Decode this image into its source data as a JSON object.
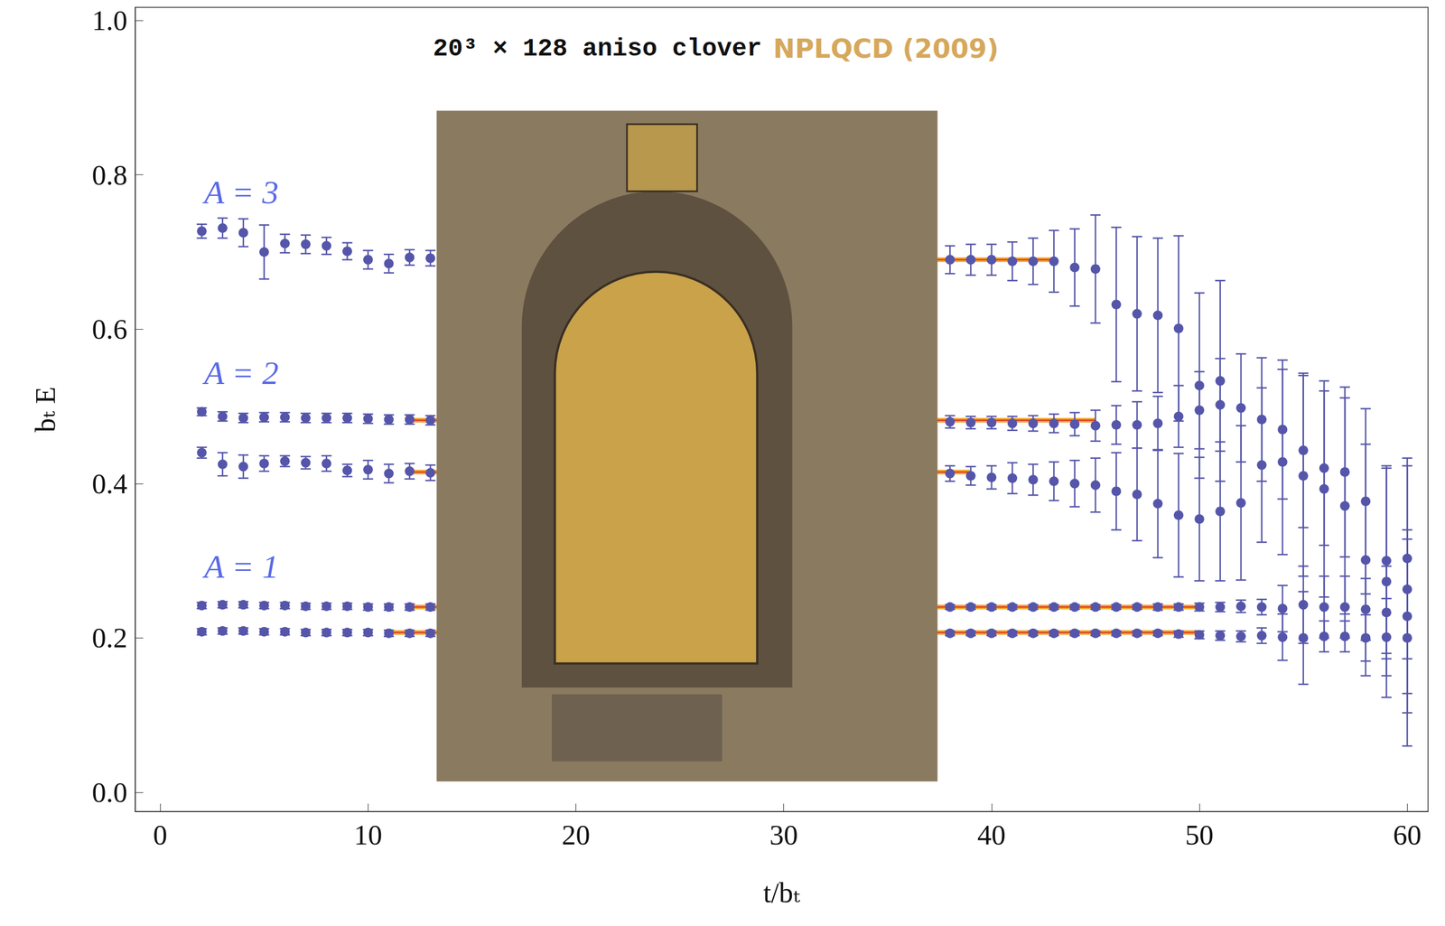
{
  "chart_data": {
    "type": "scatter",
    "title": "20³ × 128 aniso clover",
    "subtitle": "NPLQCD (2009)",
    "x_label": "t/bₜ",
    "y_label": "bₜ E",
    "xlim": [
      -1.2,
      61
    ],
    "ylim": [
      -0.025,
      1.017
    ],
    "xticks": [
      0,
      10,
      20,
      30,
      40,
      50,
      60
    ],
    "yticks": [
      {
        "value": 0,
        "label": "0.0"
      },
      0.2,
      0.4,
      0.6,
      0.8,
      {
        "value": 1,
        "label": "1.0"
      }
    ],
    "grid": false,
    "series": [
      {
        "group": "A = 3",
        "color": "#5555aa",
        "marker": "circle",
        "x": [
          2,
          3,
          4,
          5,
          6,
          7,
          8,
          9,
          10,
          11,
          12,
          13,
          38,
          39,
          40,
          41,
          42,
          43,
          44,
          45,
          46,
          47,
          48,
          49,
          50,
          51
        ],
        "values": [
          0.727,
          0.731,
          0.725,
          0.7,
          0.711,
          0.71,
          0.708,
          0.701,
          0.69,
          0.685,
          0.693,
          0.692,
          0.69,
          0.69,
          0.69,
          0.688,
          0.688,
          0.688,
          0.68,
          0.678,
          0.632,
          0.62,
          0.618,
          0.601,
          0.527,
          0.533
        ],
        "errors": [
          0.009,
          0.013,
          0.018,
          0.035,
          0.012,
          0.012,
          0.011,
          0.011,
          0.012,
          0.012,
          0.01,
          0.01,
          0.018,
          0.02,
          0.02,
          0.025,
          0.03,
          0.04,
          0.05,
          0.07,
          0.1,
          0.1,
          0.1,
          0.12,
          0.12,
          0.13
        ],
        "fit": {
          "value": 0.69,
          "x": [
            14,
            43
          ]
        }
      },
      {
        "group": "A = 2",
        "color": "#5555aa",
        "marker": "circle",
        "x": [
          2,
          3,
          4,
          5,
          6,
          7,
          8,
          9,
          10,
          11,
          12,
          13,
          38,
          39,
          40,
          41,
          42,
          43,
          44,
          45,
          46,
          47,
          48,
          49,
          50,
          51,
          52,
          53,
          54,
          55,
          56,
          57,
          58,
          59,
          60
        ],
        "values": [
          0.493,
          0.487,
          0.485,
          0.486,
          0.486,
          0.485,
          0.485,
          0.485,
          0.484,
          0.483,
          0.483,
          0.482,
          0.48,
          0.479,
          0.479,
          0.478,
          0.478,
          0.478,
          0.477,
          0.475,
          0.476,
          0.476,
          0.478,
          0.487,
          0.495,
          0.502,
          0.498,
          0.483,
          0.47,
          0.443,
          0.42,
          0.415,
          0.377,
          0.3,
          0.303
        ],
        "errors": [
          0.005,
          0.006,
          0.006,
          0.006,
          0.006,
          0.006,
          0.006,
          0.006,
          0.006,
          0.006,
          0.006,
          0.006,
          0.008,
          0.008,
          0.008,
          0.009,
          0.01,
          0.012,
          0.015,
          0.02,
          0.025,
          0.03,
          0.035,
          0.04,
          0.05,
          0.06,
          0.07,
          0.08,
          0.09,
          0.1,
          0.1,
          0.11,
          0.12,
          0.12,
          0.13
        ],
        "fit": {
          "value": 0.482,
          "x": [
            12,
            45
          ]
        }
      },
      {
        "group": "A = 2",
        "color": "#5555aa",
        "marker": "circle",
        "x": [
          2,
          3,
          4,
          5,
          6,
          7,
          8,
          9,
          10,
          11,
          12,
          13,
          38,
          39,
          40,
          41,
          42,
          43,
          44,
          45,
          46,
          47,
          48,
          49,
          50,
          51,
          52,
          53,
          54,
          55,
          56,
          57,
          58,
          59,
          60
        ],
        "values": [
          0.44,
          0.425,
          0.422,
          0.426,
          0.429,
          0.427,
          0.426,
          0.417,
          0.418,
          0.413,
          0.416,
          0.414,
          0.413,
          0.41,
          0.408,
          0.407,
          0.405,
          0.403,
          0.4,
          0.398,
          0.39,
          0.386,
          0.374,
          0.359,
          0.354,
          0.364,
          0.375,
          0.424,
          0.428,
          0.41,
          0.393,
          0.371,
          0.301,
          0.273,
          0.263
        ],
        "errors": [
          0.007,
          0.015,
          0.015,
          0.01,
          0.007,
          0.008,
          0.01,
          0.008,
          0.012,
          0.012,
          0.01,
          0.01,
          0.01,
          0.012,
          0.015,
          0.02,
          0.02,
          0.025,
          0.03,
          0.035,
          0.05,
          0.06,
          0.07,
          0.08,
          0.08,
          0.09,
          0.1,
          0.1,
          0.12,
          0.13,
          0.14,
          0.14,
          0.15,
          0.15,
          0.16
        ],
        "fit": {
          "value": 0.415,
          "x": [
            12,
            39
          ]
        }
      },
      {
        "group": "A = 1",
        "color": "#5555aa",
        "marker": "circle",
        "x": [
          2,
          3,
          4,
          5,
          6,
          7,
          8,
          9,
          10,
          11,
          12,
          13,
          38,
          39,
          40,
          41,
          42,
          43,
          44,
          45,
          46,
          47,
          48,
          49,
          50,
          51,
          52,
          53,
          54,
          55,
          56,
          57,
          58,
          59,
          60
        ],
        "values": [
          0.242,
          0.243,
          0.243,
          0.242,
          0.242,
          0.241,
          0.241,
          0.241,
          0.24,
          0.24,
          0.24,
          0.24,
          0.24,
          0.24,
          0.24,
          0.24,
          0.24,
          0.24,
          0.24,
          0.24,
          0.24,
          0.24,
          0.24,
          0.24,
          0.24,
          0.24,
          0.241,
          0.24,
          0.238,
          0.243,
          0.24,
          0.24,
          0.237,
          0.233,
          0.228
        ],
        "errors": [
          0.004,
          0.004,
          0.004,
          0.004,
          0.004,
          0.004,
          0.004,
          0.004,
          0.004,
          0.004,
          0.004,
          0.004,
          0.003,
          0.003,
          0.003,
          0.003,
          0.003,
          0.003,
          0.003,
          0.003,
          0.003,
          0.003,
          0.004,
          0.004,
          0.005,
          0.006,
          0.008,
          0.01,
          0.03,
          0.05,
          0.04,
          0.04,
          0.04,
          0.06,
          0.1
        ],
        "fit": {
          "value": 0.24,
          "x": [
            12,
            50
          ]
        }
      },
      {
        "group": "A = 1",
        "color": "#5555aa",
        "marker": "circle",
        "x": [
          2,
          3,
          4,
          5,
          6,
          7,
          8,
          9,
          10,
          11,
          12,
          13,
          38,
          39,
          40,
          41,
          42,
          43,
          44,
          45,
          46,
          47,
          48,
          49,
          50,
          51,
          52,
          53,
          54,
          55,
          56,
          57,
          58,
          59,
          60
        ],
        "values": [
          0.208,
          0.209,
          0.209,
          0.208,
          0.208,
          0.207,
          0.207,
          0.207,
          0.207,
          0.206,
          0.206,
          0.206,
          0.206,
          0.206,
          0.206,
          0.206,
          0.206,
          0.206,
          0.206,
          0.206,
          0.206,
          0.206,
          0.206,
          0.205,
          0.204,
          0.203,
          0.202,
          0.203,
          0.201,
          0.2,
          0.202,
          0.202,
          0.2,
          0.201,
          0.2
        ],
        "errors": [
          0.004,
          0.004,
          0.004,
          0.004,
          0.004,
          0.004,
          0.004,
          0.004,
          0.004,
          0.004,
          0.004,
          0.004,
          0.003,
          0.003,
          0.003,
          0.003,
          0.003,
          0.003,
          0.003,
          0.003,
          0.003,
          0.003,
          0.003,
          0.004,
          0.005,
          0.006,
          0.007,
          0.01,
          0.03,
          0.06,
          0.02,
          0.02,
          0.03,
          0.05,
          0.14
        ],
        "fit": {
          "value": 0.207,
          "x": [
            11,
            50
          ]
        }
      }
    ]
  }
}
